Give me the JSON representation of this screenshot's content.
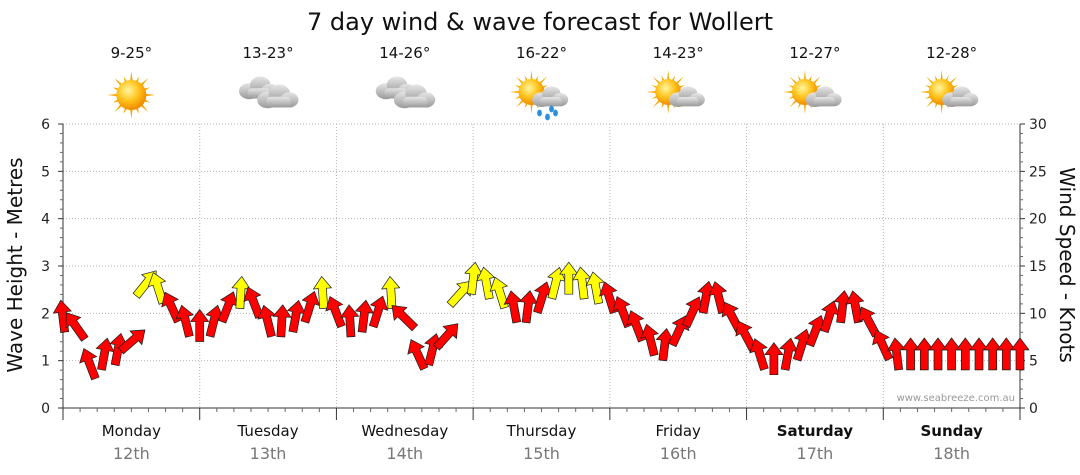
{
  "chart_data": {
    "type": "line",
    "title": "7 day wind & wave forecast for Wollert",
    "ylabel_left": "Wave Height - Metres",
    "ylabel_right": "Wind Speed - Knots",
    "ylim_left": [
      0,
      6
    ],
    "ylim_right": [
      0,
      30
    ],
    "yticks_left": [
      "0",
      "1",
      "2",
      "3",
      "4",
      "5",
      "6"
    ],
    "yticks_right": [
      "0",
      "5",
      "10",
      "15",
      "20",
      "25",
      "30"
    ],
    "grid": true,
    "watermark": "www.seabreeze.com.au",
    "days": [
      {
        "day": "Monday",
        "date": "12th",
        "temps": "9-25°",
        "icon": "sun-icon",
        "weekend": false
      },
      {
        "day": "Tuesday",
        "date": "13th",
        "temps": "13-23°",
        "icon": "cloud-icon",
        "weekend": false
      },
      {
        "day": "Wednesday",
        "date": "14th",
        "temps": "14-26°",
        "icon": "cloud-icon",
        "weekend": false
      },
      {
        "day": "Thursday",
        "date": "15th",
        "temps": "16-22°",
        "icon": "sun-cloud-rain-icon",
        "weekend": false
      },
      {
        "day": "Friday",
        "date": "16th",
        "temps": "14-23°",
        "icon": "sun-cloud-icon",
        "weekend": false
      },
      {
        "day": "Saturday",
        "date": "17th",
        "temps": "12-27°",
        "icon": "sun-cloud-icon",
        "weekend": true
      },
      {
        "day": "Sunday",
        "date": "18th",
        "temps": "12-28°",
        "icon": "sun-cloud-icon",
        "weekend": true
      }
    ],
    "series": [
      {
        "name": "Wind Speed (knots)",
        "unit": "knots",
        "x_days": [
          0.0,
          0.1,
          0.2,
          0.3,
          0.4,
          0.5,
          0.6,
          0.7,
          0.8,
          0.9,
          1.0,
          1.1,
          1.2,
          1.3,
          1.4,
          1.5,
          1.6,
          1.7,
          1.8,
          1.9,
          2.0,
          2.1,
          2.2,
          2.3,
          2.4,
          2.5,
          2.6,
          2.7,
          2.8,
          2.9,
          3.0,
          3.1,
          3.2,
          3.3,
          3.4,
          3.5,
          3.6,
          3.7,
          3.8,
          3.9,
          4.0,
          4.1,
          4.2,
          4.3,
          4.4,
          4.5,
          4.6,
          4.7,
          4.8,
          4.9,
          5.0,
          5.1,
          5.2,
          5.3,
          5.4,
          5.5,
          5.6,
          5.7,
          5.8,
          5.9,
          6.0,
          6.1,
          6.2,
          6.3,
          6.4,
          6.5,
          6.6,
          6.7,
          6.8,
          6.9,
          7.0
        ],
        "values": [
          9.5,
          8.5,
          4.5,
          5.5,
          6.0,
          7.0,
          13.0,
          12.5,
          10.5,
          9.0,
          8.5,
          9.0,
          10.5,
          12.0,
          11.0,
          9.0,
          9.0,
          9.5,
          10.5,
          12.0,
          10.0,
          9.0,
          9.5,
          10.0,
          12.0,
          9.5,
          5.5,
          6.0,
          7.5,
          12.0,
          13.5,
          13.0,
          12.0,
          10.5,
          10.5,
          11.5,
          13.0,
          13.5,
          13.0,
          12.5,
          11.5,
          10.0,
          8.5,
          7.0,
          6.5,
          8.0,
          10.0,
          11.5,
          11.5,
          9.5,
          7.5,
          5.5,
          5.0,
          5.5,
          6.5,
          8.0,
          9.5,
          10.5,
          10.5,
          9.0,
          6.5,
          5.5,
          5.5,
          5.5,
          5.5,
          5.5,
          5.5,
          5.5,
          5.5,
          5.5,
          5.5
        ],
        "color_light": "#ff0000",
        "color_strong": "#ffff00",
        "strong_threshold": 12
      }
    ]
  }
}
